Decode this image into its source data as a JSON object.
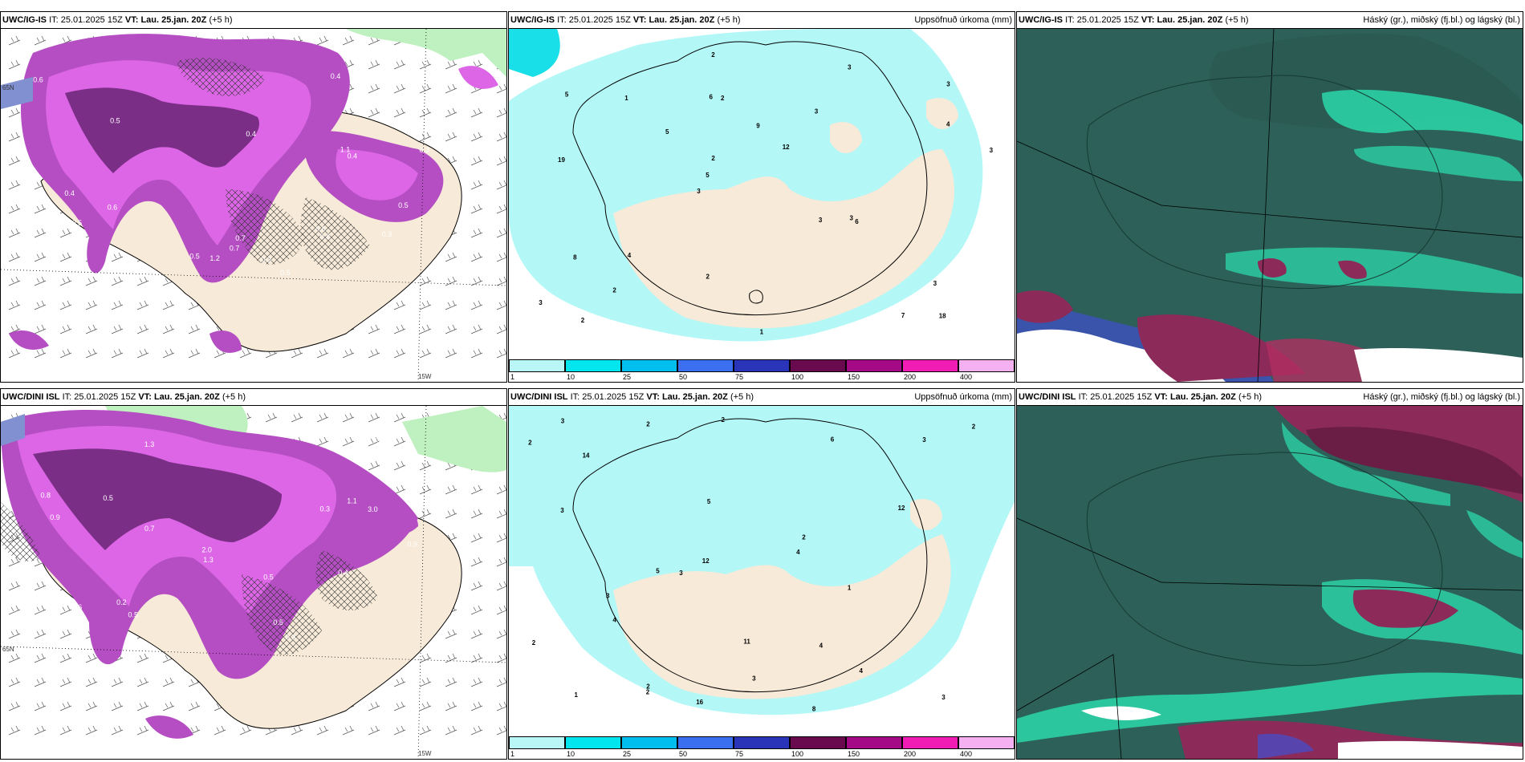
{
  "panels": {
    "p1": {
      "model": "UWC/IG-IS",
      "it_label": "IT:",
      "it_value": "25.01.2025 15Z",
      "vt_label": "VT:",
      "vt_value": "Lau. 25.jan. 20Z",
      "lead": "(+5 h)",
      "right_title": "",
      "lat_label": "65N",
      "lon_label": "15W"
    },
    "p2": {
      "model": "UWC/IG-IS",
      "it_label": "IT:",
      "it_value": "25.01.2025 15Z",
      "vt_label": "VT:",
      "vt_value": "Lau. 25.jan. 20Z",
      "lead": "(+5 h)",
      "right_title": "Uppsöfnuð úrkoma (mm)"
    },
    "p3": {
      "model": "UWC/IG-IS",
      "it_label": "IT:",
      "it_value": "25.01.2025 15Z",
      "vt_label": "VT:",
      "vt_value": "Lau. 25.jan. 20Z",
      "lead": "(+5 h)",
      "right_title": "Háský (gr.), miðský (fj.bl.) og lágský (bl.)"
    },
    "p4": {
      "model": "UWC/DINI ISL",
      "it_label": "IT:",
      "it_value": "25.01.2025 15Z",
      "vt_label": "VT:",
      "vt_value": "Lau. 25.jan. 20Z",
      "lead": "(+5 h)",
      "right_title": "",
      "lat_label": "65N",
      "lon_label": "15W"
    },
    "p5": {
      "model": "UWC/DINI ISL",
      "it_label": "IT:",
      "it_value": "25.01.2025 15Z",
      "vt_label": "VT:",
      "vt_value": "Lau. 25.jan. 20Z",
      "lead": "(+5 h)",
      "right_title": "Uppsöfnuð úrkoma (mm)"
    },
    "p6": {
      "model": "UWC/DINI ISL",
      "it_label": "IT:",
      "it_value": "25.01.2025 15Z",
      "vt_label": "VT:",
      "vt_value": "Lau. 25.jan. 20Z",
      "lead": "(+5 h)",
      "right_title": "Háský (gr.), miðský (fj.bl.) og lágský (bl.)"
    }
  },
  "colorbar": {
    "ticks": [
      "1",
      "10",
      "25",
      "50",
      "75",
      "100",
      "150",
      "200",
      "400"
    ],
    "colors": [
      "#b9f6f6",
      "#00e5ee",
      "#00bfee",
      "#3a6ff0",
      "#2a34b8",
      "#6a0a4e",
      "#a40a85",
      "#f01cb4",
      "#f4b0f0"
    ]
  },
  "colors": {
    "land": "#f7ead8",
    "precip_light": "#b4f7f7",
    "precip_cyan": "#19dfe8",
    "purple_dark": "#7a2e86",
    "purple_mid": "#b44ec2",
    "purple_light": "#dc66e6",
    "green_light": "#bff0bf",
    "cloud_high": "#2c6058",
    "cloud_teal": "#2ce0b0",
    "cloud_mid": "#8c2a5a",
    "cloud_low": "#4050d0"
  },
  "precip_numbers_top": [
    "18",
    "19",
    "3",
    "3",
    "3",
    "2",
    "6",
    "9",
    "8",
    "5",
    "3",
    "2",
    "2",
    "12",
    "6",
    "5",
    "2",
    "3",
    "3",
    "4",
    "5",
    "2",
    "2",
    "1",
    "3",
    "4",
    "7",
    "3",
    "3",
    "1"
  ],
  "precip_numbers_bottom": [
    "16",
    "8",
    "2",
    "4",
    "2",
    "14",
    "5",
    "3",
    "2",
    "5",
    "3",
    "3",
    "12",
    "11",
    "6",
    "4",
    "3",
    "2",
    "3",
    "2",
    "4",
    "2",
    "2",
    "1",
    "12",
    "3",
    "2",
    "4",
    "3",
    "1"
  ],
  "wind_numbers_top": [
    "0.5",
    "0.7",
    "0.4",
    "0.6",
    "0.3",
    "0.5",
    "0.7",
    "0.4",
    "1.1",
    "0.5",
    "0.6",
    "0.3",
    "1.2",
    "0.5",
    "0.4",
    "0.3",
    "0.6",
    "0.8",
    "0.5",
    "0.4"
  ],
  "wind_numbers_bottom": [
    "0.3",
    "1.3",
    "0.2",
    "0.5",
    "1.1",
    "0.5",
    "0.9",
    "0.7",
    "1.3",
    "0.5",
    "0.6",
    "0.8",
    "2.0",
    "0.5",
    "0.3",
    "1.7",
    "0.9",
    "0.5",
    "0.4",
    "3.0"
  ]
}
